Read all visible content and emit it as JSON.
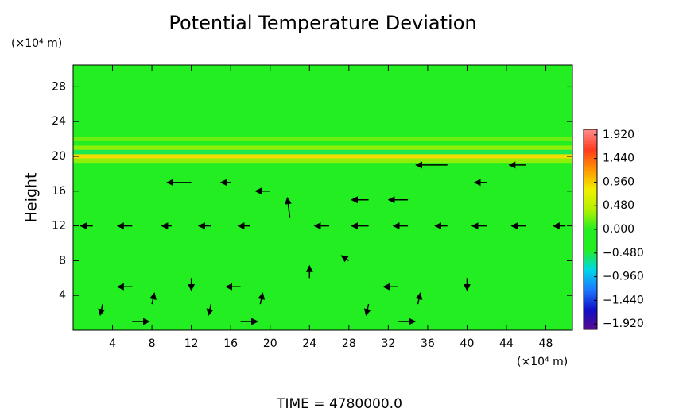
{
  "chart_data": {
    "type": "contour",
    "title": "Potential Temperature Deviation",
    "y_label": "Height",
    "y_unit_label": "(×10⁴ m)",
    "x_unit_label": "(×10⁴ m)",
    "annotation": "TIME = 4780000.0",
    "xlim": [
      0,
      50.7
    ],
    "ylim": [
      0,
      30.5
    ],
    "xticks": [
      4,
      8,
      12,
      16,
      20,
      24,
      28,
      32,
      36,
      40,
      44,
      48
    ],
    "yticks": [
      4,
      8,
      12,
      16,
      20,
      24,
      28
    ],
    "clim": [
      -2.03,
      2.03
    ],
    "cticks": [
      {
        "value": 1.92,
        "label": "1.920"
      },
      {
        "value": 1.44,
        "label": "1.440"
      },
      {
        "value": 0.96,
        "label": "0.960"
      },
      {
        "value": 0.48,
        "label": "0.480"
      },
      {
        "value": 0,
        "label": "0.000"
      },
      {
        "value": -0.48,
        "label": "−0.480"
      },
      {
        "value": -0.96,
        "label": "−0.960"
      },
      {
        "value": -1.44,
        "label": "−1.440"
      },
      {
        "value": -1.92,
        "label": "−1.920"
      }
    ],
    "colormap": [
      "#5a0a8c",
      "#1010c8",
      "#1e78ff",
      "#00d8e8",
      "#22ee22",
      "#22ee22",
      "#b4f000",
      "#f0f000",
      "#ff9600",
      "#ff3c1e",
      "#ff8c8c"
    ],
    "base_value": 0,
    "profile": {
      "heights": [
        19.5,
        20,
        20.5,
        21,
        21.5,
        22
      ],
      "values": [
        0.3,
        0.9,
        -0.5,
        0.3,
        -0.3,
        0.2
      ]
    },
    "vectors": {
      "x": [
        2,
        6,
        10,
        14,
        18,
        22,
        26,
        30,
        34,
        38,
        42,
        46,
        50,
        12,
        20,
        30,
        34,
        42,
        38,
        46,
        16,
        6,
        8,
        6,
        3,
        17,
        19,
        17,
        14,
        33,
        35,
        33,
        30,
        12,
        24,
        40,
        28
      ],
      "y": [
        12,
        12,
        12,
        12,
        12,
        13,
        12,
        12,
        12,
        12,
        12,
        12,
        12,
        17,
        16,
        15,
        15,
        17,
        19,
        19,
        17,
        1,
        3,
        5,
        3,
        1,
        3,
        5,
        3,
        1,
        3,
        5,
        3,
        6,
        6,
        6,
        8
      ],
      "u": [
        -10,
        -12,
        -8,
        -10,
        -10,
        -2,
        -12,
        -14,
        -12,
        -10,
        -12,
        -12,
        -10,
        -20,
        -12,
        -14,
        -16,
        -10,
        -26,
        -14,
        -8,
        14,
        2,
        -12,
        -2,
        14,
        2,
        -12,
        -2,
        14,
        2,
        -12,
        -2,
        0,
        0,
        0,
        -6
      ],
      "v": [
        0,
        0,
        0,
        0,
        0,
        16,
        0,
        0,
        0,
        0,
        0,
        0,
        0,
        0,
        0,
        0,
        0,
        0,
        0,
        0,
        0,
        0,
        9,
        0,
        -9,
        0,
        9,
        0,
        -9,
        0,
        9,
        0,
        -9,
        -10,
        10,
        -10,
        4
      ]
    }
  }
}
